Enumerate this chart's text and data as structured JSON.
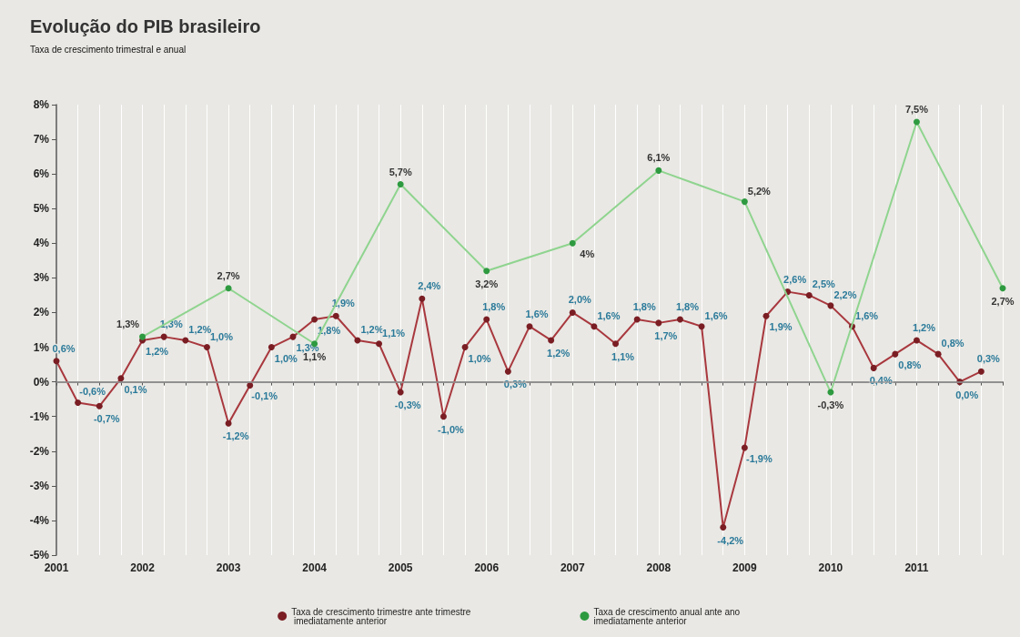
{
  "chart_data": {
    "type": "line",
    "title": "Evolução do PIB brasileiro",
    "subtitle": "Taxa de crescimento trimestral e anual",
    "xlim": [
      2001,
      2012
    ],
    "xticks": [
      {
        "value": 2001,
        "label": "2001"
      },
      {
        "value": 2001.25,
        "label": null
      },
      {
        "value": 2001.5,
        "label": null
      },
      {
        "value": 2001.75,
        "label": null
      },
      {
        "value": 2002,
        "label": "2002"
      },
      {
        "value": 2002.25,
        "label": null
      },
      {
        "value": 2002.5,
        "label": null
      },
      {
        "value": 2002.75,
        "label": null
      },
      {
        "value": 2003,
        "label": "2003"
      },
      {
        "value": 2003.25,
        "label": null
      },
      {
        "value": 2003.5,
        "label": null
      },
      {
        "value": 2003.75,
        "label": null
      },
      {
        "value": 2004,
        "label": "2004"
      },
      {
        "value": 2004.25,
        "label": null
      },
      {
        "value": 2004.5,
        "label": null
      },
      {
        "value": 2004.75,
        "label": null
      },
      {
        "value": 2005,
        "label": "2005"
      },
      {
        "value": 2005.25,
        "label": null
      },
      {
        "value": 2005.5,
        "label": null
      },
      {
        "value": 2005.75,
        "label": null
      },
      {
        "value": 2006,
        "label": "2006"
      },
      {
        "value": 2006.25,
        "label": null
      },
      {
        "value": 2006.5,
        "label": null
      },
      {
        "value": 2006.75,
        "label": null
      },
      {
        "value": 2007,
        "label": "2007"
      },
      {
        "value": 2007.25,
        "label": null
      },
      {
        "value": 2007.5,
        "label": null
      },
      {
        "value": 2007.75,
        "label": null
      },
      {
        "value": 2008,
        "label": "2008"
      },
      {
        "value": 2008.25,
        "label": null
      },
      {
        "value": 2008.5,
        "label": null
      },
      {
        "value": 2008.75,
        "label": null
      },
      {
        "value": 2009,
        "label": "2009"
      },
      {
        "value": 2009.25,
        "label": null
      },
      {
        "value": 2009.5,
        "label": null
      },
      {
        "value": 2009.75,
        "label": null
      },
      {
        "value": 2010,
        "label": "2010"
      },
      {
        "value": 2010.25,
        "label": null
      },
      {
        "value": 2010.5,
        "label": null
      },
      {
        "value": 2010.75,
        "label": null
      },
      {
        "value": 2011,
        "label": "2011"
      },
      {
        "value": 2011.25,
        "label": null
      },
      {
        "value": 2011.5,
        "label": null
      },
      {
        "value": 2011.75,
        "label": null
      },
      {
        "value": 2012,
        "label": null
      }
    ],
    "ylim": [
      -5,
      8
    ],
    "yticks": [
      {
        "value": -5,
        "label": "-5%"
      },
      {
        "value": -4,
        "label": "-4%"
      },
      {
        "value": -3,
        "label": "-3%"
      },
      {
        "value": -2,
        "label": "-2%"
      },
      {
        "value": -1,
        "label": "-1%"
      },
      {
        "value": 0,
        "label": "0%"
      },
      {
        "value": 1,
        "label": "1%"
      },
      {
        "value": 2,
        "label": "2%"
      },
      {
        "value": 3,
        "label": "3%"
      },
      {
        "value": 4,
        "label": "4%"
      },
      {
        "value": 5,
        "label": "5%"
      },
      {
        "value": 6,
        "label": "6%"
      },
      {
        "value": 7,
        "label": "7%"
      },
      {
        "value": 8,
        "label": "8%"
      }
    ],
    "grid": "x",
    "legend": "bottom",
    "marker": "circle",
    "line_style": "solid",
    "ref_lines": [
      {
        "axis": "y",
        "value": 0,
        "color": "#999999"
      }
    ],
    "series": [
      {
        "name": "Taxa de crescimento trimestre ante trimestre imediatamente anterior",
        "color": "#a8383e",
        "x": [
          2001,
          2001.25,
          2001.5,
          2001.75,
          2002,
          2002.25,
          2002.5,
          2002.75,
          2003,
          2003.25,
          2003.5,
          2003.75,
          2004,
          2004.25,
          2004.5,
          2004.75,
          2005,
          2005.25,
          2005.5,
          2005.75,
          2006,
          2006.25,
          2006.5,
          2006.75,
          2007,
          2007.25,
          2007.5,
          2007.75,
          2008,
          2008.25,
          2008.5,
          2008.75,
          2009,
          2009.25,
          2009.5,
          2009.75,
          2010,
          2010.25,
          2010.5,
          2010.75,
          2011,
          2011.25,
          2011.5,
          2011.75
        ],
        "values": [
          0.6,
          -0.6,
          -0.7,
          0.1,
          1.2,
          1.3,
          1.2,
          1.0,
          -1.2,
          -0.1,
          1.0,
          1.3,
          1.8,
          1.9,
          1.2,
          1.1,
          -0.3,
          2.4,
          -1.0,
          1.0,
          1.8,
          0.3,
          1.6,
          1.2,
          2.0,
          1.6,
          1.1,
          1.8,
          1.7,
          1.8,
          1.6,
          -4.2,
          -1.9,
          1.9,
          2.6,
          2.5,
          2.2,
          1.6,
          0.4,
          0.8,
          1.2,
          0.8,
          0.0,
          0.3
        ],
        "value_labels": [
          "0,6%",
          "-0,6%",
          "-0,7%",
          "0,1%",
          "1,2%",
          "1,3%",
          "1,2%",
          "1,0%",
          "-1,2%",
          "-0,1%",
          "1,0%",
          "1,3%",
          "1,8%",
          "1,9%",
          "1,2%",
          "1,1%",
          "-0,3%",
          "2,4%",
          "-1,0%",
          "1,0%",
          "1,8%",
          "0,3%",
          "1,6%",
          "1,2%",
          "2,0%",
          "1,6%",
          "1,1%",
          "1,8%",
          "1,7%",
          "1,8%",
          "1,6%",
          "-4,2%",
          "-1,9%",
          "1,9%",
          "2,6%",
          "2,5%",
          "2,2%",
          "1,6%",
          "0,4%",
          "0,8%",
          "1,2%",
          "0,8%",
          "0,0%",
          "0,3%"
        ]
      },
      {
        "name": "Taxa de crescimento anual ante ano imediatamente anterior",
        "color": "#8fd48f",
        "x": [
          2002,
          2003,
          2004,
          2005,
          2006,
          2007,
          2008,
          2009,
          2010,
          2011,
          2012
        ],
        "values": [
          1.3,
          2.7,
          1.1,
          5.7,
          3.2,
          4,
          6.1,
          5.2,
          -0.3,
          7.5,
          2.7
        ],
        "value_labels": [
          "1,3%",
          "2,7%",
          "1,1%",
          "5,7%",
          "3,2%",
          "4%",
          "6,1%",
          "5,2%",
          "-0,3%",
          "7,5%",
          "2,7%"
        ]
      }
    ]
  }
}
